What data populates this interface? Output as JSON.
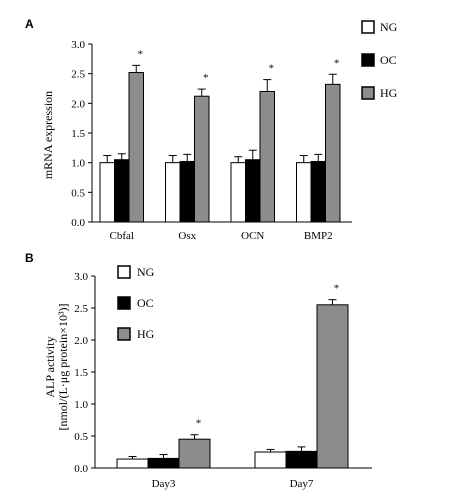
{
  "colors": {
    "NG": "#ffffff",
    "OC": "#000000",
    "HG": "#8c8c8c",
    "axis": "#000000"
  },
  "chart_data": [
    {
      "panel": "A",
      "type": "bar",
      "ylabel": "mRNA expression",
      "ylim": [
        0,
        3.0
      ],
      "yticks": [
        "0.0",
        "0.5",
        "1.0",
        "1.5",
        "2.0",
        "2.5",
        "3.0"
      ],
      "categories": [
        "Cbfal",
        "Osx",
        "OCN",
        "BMP2"
      ],
      "series": [
        {
          "name": "NG",
          "values": [
            1.0,
            1.0,
            1.0,
            1.0
          ],
          "errors": [
            0.12,
            0.12,
            0.1,
            0.12
          ]
        },
        {
          "name": "OC",
          "values": [
            1.05,
            1.02,
            1.05,
            1.02
          ],
          "errors": [
            0.1,
            0.12,
            0.16,
            0.12
          ]
        },
        {
          "name": "HG",
          "values": [
            2.52,
            2.12,
            2.2,
            2.32
          ],
          "errors": [
            0.12,
            0.12,
            0.2,
            0.17
          ]
        }
      ],
      "significance": [
        "*",
        "*",
        "*",
        "*"
      ],
      "legend_position": "right"
    },
    {
      "panel": "B",
      "type": "bar",
      "ylabel_line1": "ALP activity",
      "ylabel_line2": "[nmol/(L·μg protein×10³)]",
      "ylim": [
        0,
        3.0
      ],
      "yticks": [
        "0.0",
        "0.5",
        "1.0",
        "1.5",
        "2.0",
        "2.5",
        "3.0"
      ],
      "categories": [
        "Day3",
        "Day7"
      ],
      "series": [
        {
          "name": "NG",
          "values": [
            0.14,
            0.25
          ],
          "errors": [
            0.04,
            0.04
          ]
        },
        {
          "name": "OC",
          "values": [
            0.15,
            0.26
          ],
          "errors": [
            0.06,
            0.07
          ]
        },
        {
          "name": "HG",
          "values": [
            0.45,
            2.55
          ],
          "errors": [
            0.07,
            0.08
          ]
        }
      ],
      "significance": [
        "*",
        "*"
      ],
      "legend_position": "top-left"
    }
  ]
}
